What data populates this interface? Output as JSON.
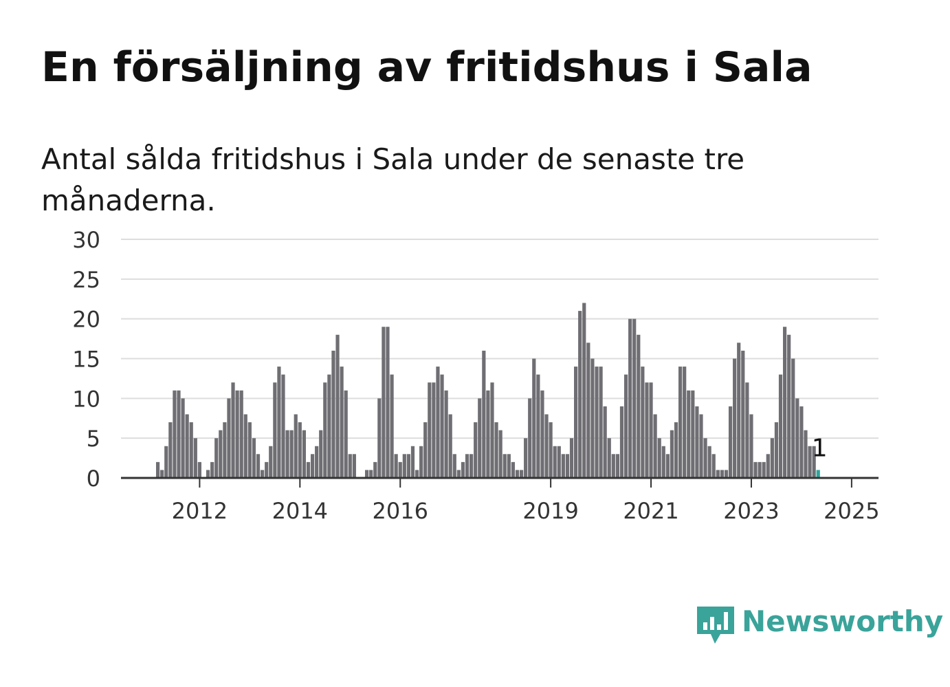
{
  "title": "En försäljning av fritidshus i Sala",
  "subtitle": "Antal sålda fritidshus i Sala under de senaste tre månaderna.",
  "brand": {
    "name": "Newsworthy",
    "color": "#3aa39a"
  },
  "chart_data": {
    "type": "bar",
    "title": "En försäljning av fritidshus i Sala",
    "subtitle": "Antal sålda fritidshus i Sala under de senaste tre månaderna.",
    "xlabel": "",
    "ylabel": "",
    "ylim": [
      0,
      30
    ],
    "yticks": [
      0,
      5,
      10,
      15,
      20,
      25,
      30
    ],
    "xtick_labels": [
      "2012",
      "2014",
      "2016",
      "2019",
      "2021",
      "2023",
      "2025"
    ],
    "grid": true,
    "bar_color": "#6f6e73",
    "highlight_color": "#2fa59b",
    "start": "2011-03",
    "series": [
      {
        "values": [
          2,
          1,
          4,
          7,
          11,
          11,
          10,
          8,
          7,
          5,
          2,
          0,
          1,
          2,
          5,
          6,
          7,
          10,
          12,
          11,
          11,
          8,
          7,
          5,
          3,
          1,
          2,
          4,
          12,
          14,
          13,
          6,
          6,
          8,
          7,
          6,
          2,
          3,
          4,
          6,
          12,
          13,
          16,
          18,
          14,
          11,
          3,
          3,
          0,
          0,
          1,
          1,
          2,
          10,
          19,
          19,
          13,
          3,
          2,
          3,
          3,
          4,
          1,
          4,
          7,
          12,
          12,
          14,
          13,
          11,
          8,
          3,
          1,
          2,
          3,
          3,
          7,
          10,
          16,
          11,
          12,
          7,
          6,
          3,
          3,
          2,
          1,
          1,
          5,
          10,
          15,
          13,
          11,
          8,
          7,
          4,
          4,
          3,
          3,
          5,
          14,
          21,
          22,
          17,
          15,
          14,
          14,
          9,
          5,
          3,
          3,
          9,
          13,
          20,
          20,
          18,
          14,
          12,
          12,
          8,
          5,
          4,
          3,
          6,
          7,
          14,
          14,
          11,
          11,
          9,
          8,
          5,
          4,
          3,
          1,
          1,
          1,
          9,
          15,
          17,
          16,
          12,
          8,
          2,
          2,
          2,
          3,
          5,
          7,
          13,
          19,
          18,
          15,
          10,
          9,
          6,
          4,
          4,
          1
        ]
      }
    ],
    "annotation": "1"
  }
}
